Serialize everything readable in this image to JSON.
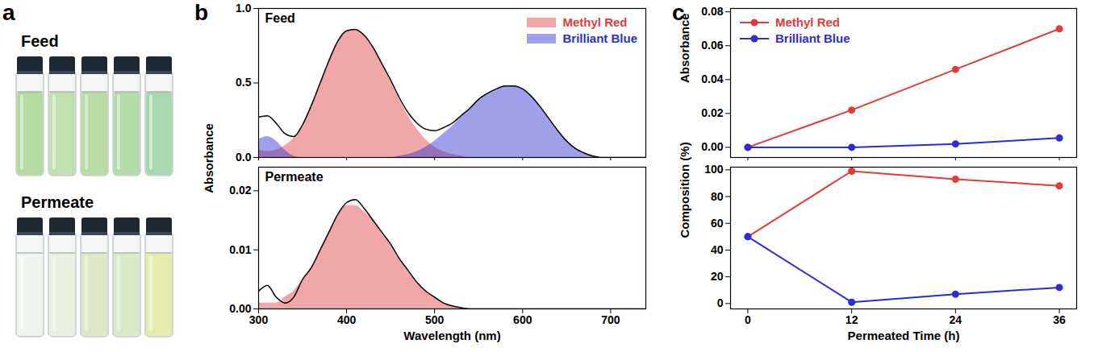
{
  "chart_data": [
    {
      "panel": "a",
      "type": "photo",
      "groups": [
        {
          "label": "Feed",
          "colors": [
            "#b4dba0",
            "#c0e0b0",
            "#b8dca4",
            "#b4dca8",
            "#a8d8b0"
          ]
        },
        {
          "label": "Permeate",
          "colors": [
            "#f0f4ee",
            "#e8f0e0",
            "#dde8c8",
            "#d8eac8",
            "#e6ecb0"
          ]
        }
      ]
    },
    {
      "panel": "b",
      "type": "area",
      "title": "Feed",
      "ylabel": "Absorbance",
      "legend": "top-right",
      "tick_labels": "y",
      "x": [
        300,
        310,
        320,
        330,
        340,
        350,
        360,
        370,
        380,
        390,
        400,
        410,
        420,
        430,
        440,
        450,
        460,
        470,
        480,
        490,
        500,
        510,
        520,
        530,
        540,
        550,
        560,
        570,
        580,
        590,
        600,
        610,
        620,
        630,
        640,
        650,
        660,
        670,
        680,
        690,
        700,
        710,
        720,
        730,
        740
      ],
      "xlim": [
        300,
        740
      ],
      "xticks": [
        300,
        400,
        500,
        600,
        700
      ],
      "ylim": [
        0,
        1.0
      ],
      "yticks": [
        {
          "value": 0,
          "label": "0.0"
        },
        {
          "value": 0.5,
          "label": "0.5"
        },
        {
          "value": 1.0,
          "label": "1.0"
        }
      ],
      "series": [
        {
          "name": "Methyl Red",
          "color": "#e03c3c",
          "type": "area",
          "values": [
            0.05,
            0.04,
            0.05,
            0.08,
            0.13,
            0.22,
            0.35,
            0.5,
            0.65,
            0.78,
            0.85,
            0.86,
            0.82,
            0.74,
            0.63,
            0.51,
            0.39,
            0.28,
            0.19,
            0.12,
            0.07,
            0.04,
            0.02,
            0.01,
            0,
            0,
            0,
            0,
            0,
            0,
            0,
            0,
            0,
            0,
            0,
            0,
            0,
            0,
            0,
            0,
            0,
            0,
            0,
            0,
            0
          ]
        },
        {
          "name": "Brilliant Blue",
          "color": "#2c2cd0",
          "type": "area",
          "values": [
            0.12,
            0.14,
            0.11,
            0.05,
            0.01,
            0,
            0,
            0,
            0,
            0,
            0,
            0,
            0,
            0,
            0,
            0,
            0.01,
            0.02,
            0.04,
            0.07,
            0.11,
            0.16,
            0.21,
            0.27,
            0.33,
            0.39,
            0.43,
            0.46,
            0.48,
            0.48,
            0.46,
            0.41,
            0.34,
            0.26,
            0.18,
            0.11,
            0.06,
            0.03,
            0.01,
            0,
            0,
            0,
            0,
            0,
            0
          ]
        },
        {
          "color": "#000000",
          "type": "line",
          "values": [
            0.27,
            0.28,
            0.23,
            0.16,
            0.14,
            0.22,
            0.35,
            0.5,
            0.65,
            0.78,
            0.85,
            0.86,
            0.82,
            0.74,
            0.63,
            0.52,
            0.4,
            0.3,
            0.23,
            0.19,
            0.18,
            0.2,
            0.23,
            0.28,
            0.33,
            0.39,
            0.43,
            0.46,
            0.48,
            0.48,
            0.46,
            0.41,
            0.34,
            0.26,
            0.18,
            0.11,
            0.06,
            0.03,
            0.01,
            0,
            0,
            0,
            0,
            0,
            0
          ]
        }
      ]
    },
    {
      "panel": "b",
      "type": "area",
      "title": "Permeate",
      "xlabel": "Wavelength (nm)",
      "x": [
        300,
        310,
        320,
        330,
        340,
        350,
        360,
        370,
        380,
        390,
        400,
        410,
        420,
        430,
        440,
        450,
        460,
        470,
        480,
        490,
        500,
        510,
        520,
        530,
        540,
        550,
        560,
        570,
        580,
        590,
        600,
        610,
        620,
        630,
        640,
        650,
        660,
        670,
        680,
        690,
        700,
        710,
        720,
        730,
        740
      ],
      "xlim": [
        300,
        740
      ],
      "xticks": [
        300,
        400,
        500,
        600,
        700
      ],
      "ylim": [
        0,
        0.024
      ],
      "yticks": [
        {
          "value": 0,
          "label": "0.00"
        },
        {
          "value": 0.01,
          "label": "0.01"
        },
        {
          "value": 0.02,
          "label": "0.02"
        }
      ],
      "series": [
        {
          "name": "Methyl Red",
          "color": "#e03c3c",
          "type": "area",
          "values": [
            0.001,
            0.001,
            0.001,
            0.002,
            0.003,
            0.005,
            0.007,
            0.01,
            0.013,
            0.016,
            0.0175,
            0.0175,
            0.0165,
            0.015,
            0.013,
            0.011,
            0.0085,
            0.0065,
            0.0045,
            0.003,
            0.002,
            0.001,
            0.0005,
            0.0002,
            0,
            0,
            0,
            0,
            0,
            0,
            0,
            0,
            0,
            0,
            0,
            0,
            0,
            0,
            0,
            0,
            0,
            0,
            0,
            0,
            0
          ]
        },
        {
          "name": "Brilliant Blue",
          "color": "#2c2cd0",
          "type": "area",
          "values": [
            0,
            0,
            0,
            0,
            0,
            0,
            0,
            0,
            0,
            0,
            0,
            0,
            0,
            0,
            0,
            0,
            0,
            0,
            0,
            0,
            0,
            0,
            0,
            0,
            0,
            0,
            0,
            0,
            0,
            0,
            0,
            0,
            0,
            0,
            0,
            0,
            0,
            0,
            0,
            0,
            0,
            0,
            0,
            0,
            0
          ]
        },
        {
          "color": "#000000",
          "type": "line",
          "values": [
            0.003,
            0.004,
            0.002,
            0.001,
            0.002,
            0.005,
            0.007,
            0.01,
            0.013,
            0.016,
            0.018,
            0.0185,
            0.017,
            0.015,
            0.013,
            0.011,
            0.0085,
            0.0065,
            0.0045,
            0.003,
            0.002,
            0.001,
            0.0005,
            0.0002,
            0,
            0,
            0,
            0,
            0,
            0,
            0,
            0,
            0,
            0,
            0,
            0,
            0,
            0,
            0,
            0,
            0,
            0,
            0,
            0,
            0
          ]
        }
      ]
    },
    {
      "panel": "c",
      "type": "line",
      "ylabel": "Absorbance",
      "legend": "top-left",
      "tick_labels": "y",
      "x": [
        0,
        12,
        24,
        36
      ],
      "xlim": [
        -2,
        38
      ],
      "xticks": [
        0,
        12,
        24,
        36
      ],
      "ylim": [
        -0.006,
        0.082
      ],
      "yticks": [
        {
          "value": 0,
          "label": "0.00"
        },
        {
          "value": 0.02,
          "label": "0.02"
        },
        {
          "value": 0.04,
          "label": "0.04"
        },
        {
          "value": 0.06,
          "label": "0.06"
        },
        {
          "value": 0.08,
          "label": "0.08"
        }
      ],
      "series": [
        {
          "name": "Methyl Red",
          "color": "#e03c3c",
          "marker": "circle",
          "values": [
            0,
            0.022,
            0.046,
            0.07
          ]
        },
        {
          "name": "Brilliant Blue",
          "color": "#2c2cd0",
          "marker": "circle",
          "values": [
            0,
            0,
            0.002,
            0.0055
          ]
        }
      ]
    },
    {
      "panel": "c",
      "type": "line",
      "ylabel": "Composition (%)",
      "xlabel": "Permeated Time (h)",
      "x": [
        0,
        12,
        24,
        36
      ],
      "xlim": [
        -2,
        38
      ],
      "xticks": [
        0,
        12,
        24,
        36
      ],
      "ylim": [
        -4,
        102
      ],
      "yticks": [
        0,
        20,
        40,
        60,
        80,
        100
      ],
      "series": [
        {
          "name": "Methyl Red",
          "color": "#e03c3c",
          "marker": "circle",
          "values": [
            50,
            99,
            93,
            88
          ]
        },
        {
          "name": "Brilliant Blue",
          "color": "#2c2cd0",
          "marker": "circle",
          "values": [
            50,
            1,
            7,
            12
          ]
        }
      ]
    }
  ]
}
